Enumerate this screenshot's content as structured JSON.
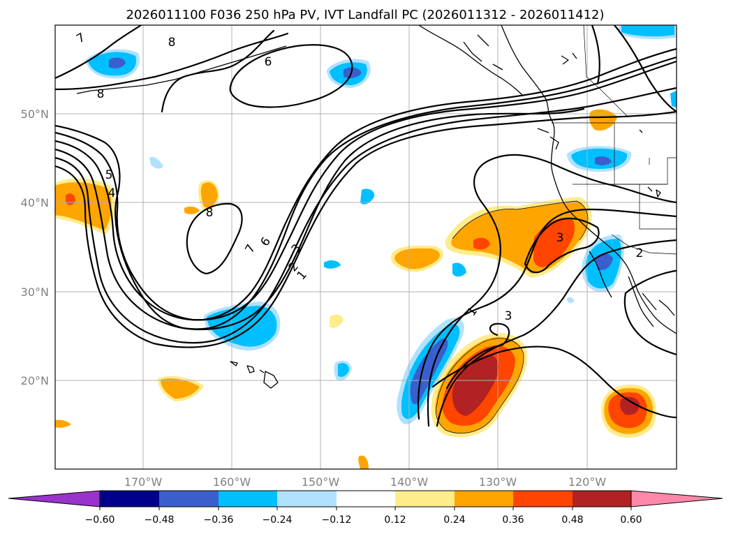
{
  "title": "2026011100 F036 250 hPa PV, IVT Landfall PC (2026011312 - 2026011412)",
  "map": {
    "lat_labels": [
      "50°N",
      "40°N",
      "30°N",
      "20°N"
    ],
    "lon_labels": [
      "170°W",
      "160°W",
      "150°W",
      "140°W",
      "130°W",
      "120°W"
    ]
  },
  "contour_labels": [
    "7",
    "8",
    "8",
    "6",
    "5",
    "4",
    "8",
    "7",
    "6",
    "3",
    "2",
    "1",
    "1",
    "3",
    "3",
    "2"
  ],
  "colorbar": {
    "ticks": [
      "−0.60",
      "−0.48",
      "−0.36",
      "−0.24",
      "−0.12",
      "0.12",
      "0.24",
      "0.36",
      "0.48",
      "0.60"
    ],
    "colors": [
      "#9933cc",
      "#00008b",
      "#3a5fcd",
      "#00bfff",
      "#b0e2ff",
      "#ffffff",
      "#ffec8b",
      "#ffa500",
      "#ff4500",
      "#b22222",
      "#ff88aa"
    ]
  },
  "chart_data": {
    "type": "contour-map",
    "title": "2026011100 F036 250 hPa PV, IVT Landfall PC (2026011312 - 2026011412)",
    "lon_range": [
      180,
      110
    ],
    "lat_range": [
      10,
      60
    ],
    "field_lines": "250 hPa PV contours (PVU)",
    "field_fill": "IVT Landfall PC",
    "contour_levels": [
      1,
      2,
      3,
      4,
      5,
      6,
      7,
      8
    ],
    "fill_levels": [
      -0.6,
      -0.48,
      -0.36,
      -0.24,
      -0.12,
      0.12,
      0.24,
      0.36,
      0.48,
      0.6
    ]
  }
}
